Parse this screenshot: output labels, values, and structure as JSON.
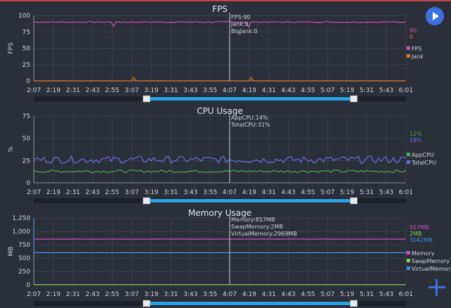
{
  "colors": {
    "fps": "#cf4fbf",
    "jank": "#e07a2c",
    "appcpu": "#3fb34f",
    "totalcpu": "#6b6fe0",
    "memory": "#cf4fbf",
    "swap": "#7fd84a",
    "virtual": "#3f8fe8",
    "grid": "#3a3f4b",
    "axis": "#8a909c",
    "bg": "#2b2f3a",
    "slider": "#2aa3e6"
  },
  "controls": {
    "play_icon": "play-icon",
    "add_icon": "plus-icon"
  },
  "x_ticks": [
    "2:07",
    "2:19",
    "2:31",
    "2:43",
    "2:55",
    "3:07",
    "3:19",
    "3:31",
    "3:43",
    "3:55",
    "4:07",
    "4:19",
    "4:31",
    "4:43",
    "4:55",
    "5:07",
    "5:19",
    "5:31",
    "5:43",
    "6:01"
  ],
  "chart_data": [
    {
      "type": "line",
      "title": "FPS",
      "ylabel": "FPS",
      "ylim": [
        0,
        100
      ],
      "yticks": [
        "0",
        "25",
        "50",
        "75",
        "100"
      ],
      "grid": true,
      "legend_position": "right",
      "series": [
        {
          "name": "FPS",
          "color": "#cf4fbf",
          "base": 90,
          "noise": 0.8,
          "dips": [
            [
              32,
              83
            ],
            [
              86,
              82
            ]
          ]
        },
        {
          "name": "Jank",
          "color": "#e07a2c",
          "base": 0,
          "noise": 0,
          "spikes": [
            [
              40,
              5
            ],
            [
              87,
              5
            ]
          ]
        }
      ],
      "current_values": [
        "90",
        "0"
      ],
      "tooltip": [
        "FPS:90",
        "Jank:0",
        "BigJank:0"
      ],
      "cursor_x": "4:07"
    },
    {
      "type": "line",
      "title": "CPU Usage",
      "ylabel": "%",
      "ylim": [
        0,
        75
      ],
      "yticks": [
        "0",
        "25",
        "50",
        "75"
      ],
      "grid": true,
      "legend_position": "right",
      "series": [
        {
          "name": "AppCPU",
          "color": "#3fb34f",
          "base": 13,
          "noise": 1.5
        },
        {
          "name": "TotalCPU",
          "color": "#6b6fe0",
          "base": 26,
          "noise": 4
        }
      ],
      "current_values": [
        "12%",
        "18%"
      ],
      "tooltip": [
        "AppCPU:14%",
        "TotalCPU:31%"
      ],
      "cursor_x": "4:07"
    },
    {
      "type": "line",
      "title": "Memory Usage",
      "ylabel": "MB",
      "ylim": [
        0,
        1250
      ],
      "yticks": [
        "0",
        "250",
        "500",
        "750",
        "1,000",
        "1,250"
      ],
      "grid": true,
      "legend_position": "right",
      "series": [
        {
          "name": "Memory",
          "color": "#cf4fbf",
          "base": 855,
          "noise": 2
        },
        {
          "name": "SwapMemory",
          "color": "#7fd84a",
          "base": 2,
          "noise": 0
        },
        {
          "name": "VirtualMemory",
          "color": "#3f8fe8",
          "base": 600,
          "noise": 0,
          "start_spike": 1250
        }
      ],
      "current_values": [
        "917MB",
        "2MB",
        "3042MB"
      ],
      "tooltip": [
        "Memory:857MB",
        "SwapMemory:2MB",
        "VirtualMemory:2969MB"
      ],
      "cursor_x": "4:07"
    }
  ]
}
